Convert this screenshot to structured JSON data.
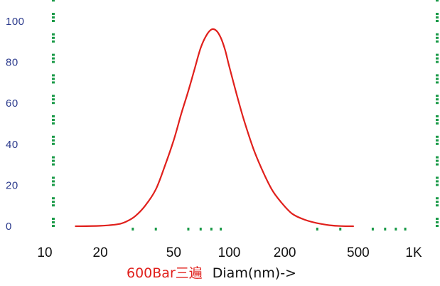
{
  "chart_data": {
    "type": "line",
    "title": "",
    "xscale": "log",
    "xlim": [
      10,
      1000
    ],
    "ylim": [
      0,
      105
    ],
    "xlabel_series": "600Bar三遍",
    "xlabel_axis": "Diam(nm)->",
    "x_ticks": [
      {
        "value": 10,
        "label": "10"
      },
      {
        "value": 20,
        "label": "20"
      },
      {
        "value": 50,
        "label": "50"
      },
      {
        "value": 100,
        "label": "100"
      },
      {
        "value": 200,
        "label": "200"
      },
      {
        "value": 500,
        "label": "500"
      },
      {
        "value": 1000,
        "label": "1K"
      }
    ],
    "y_ticks": [
      {
        "value": 0,
        "label": "0"
      },
      {
        "value": 20,
        "label": "20"
      },
      {
        "value": 40,
        "label": "40"
      },
      {
        "value": 60,
        "label": "60"
      },
      {
        "value": 80,
        "label": "80"
      },
      {
        "value": 100,
        "label": "100"
      }
    ],
    "y_minor_ticks": [
      0,
      10,
      20,
      30,
      40,
      50,
      60,
      70,
      80,
      90,
      100,
      110
    ],
    "x_minor_ticks": [
      30,
      40,
      60,
      70,
      80,
      90,
      300,
      400,
      600,
      700,
      800,
      900
    ],
    "series": [
      {
        "color": "#e0201c",
        "x": [
          14.7,
          20,
          25,
          28,
          31,
          35,
          40,
          45,
          50,
          55,
          60,
          65,
          70,
          75,
          80,
          85,
          90,
          95,
          100,
          110,
          120,
          135,
          150,
          170,
          190,
          220,
          260,
          300,
          350,
          400,
          470
        ],
        "y": [
          0,
          0.2,
          1,
          2.5,
          5,
          10,
          18,
          30,
          42,
          55,
          66,
          77,
          87,
          93,
          96,
          95.5,
          92,
          86,
          78,
          64,
          52,
          38,
          28,
          18,
          12,
          6,
          3,
          1.5,
          0.5,
          0.1,
          0
        ]
      }
    ]
  },
  "colors": {
    "series": "#e0201c",
    "tick_marks": "#1a9a48",
    "y_labels": "#2b3a8c",
    "x_labels": "#111111"
  }
}
